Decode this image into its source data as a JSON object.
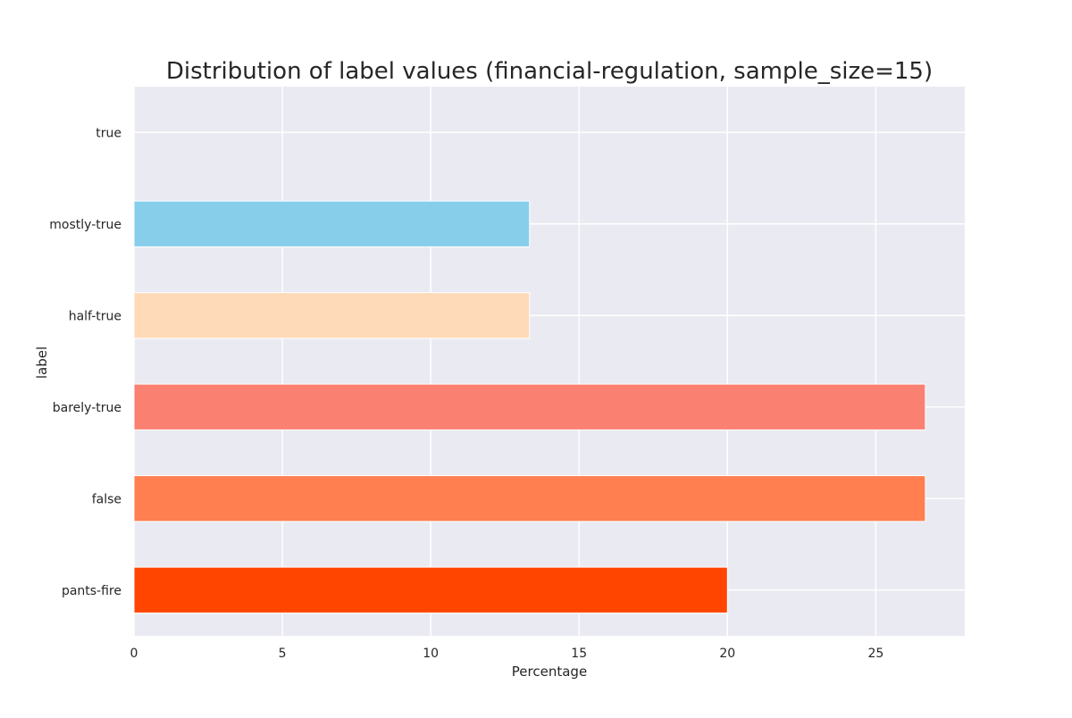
{
  "chart_data": {
    "type": "bar",
    "orientation": "horizontal",
    "title": "Distribution of label values (financial-regulation, sample_size=15)",
    "xlabel": "Percentage",
    "ylabel": "label",
    "categories": [
      "true",
      "mostly-true",
      "half-true",
      "barely-true",
      "false",
      "pants-fire"
    ],
    "values": [
      0,
      13.33,
      13.33,
      26.67,
      26.67,
      20.0
    ],
    "colors": [
      "#ffffff",
      "#87ceeb",
      "#ffdab9",
      "#fa8072",
      "#ff7f50",
      "#ff4500"
    ],
    "xlim": [
      0,
      28
    ],
    "xticks": [
      0,
      5,
      10,
      15,
      20,
      25
    ],
    "xtick_labels": [
      "0",
      "5",
      "10",
      "15",
      "20",
      "25"
    ],
    "grid": true,
    "background_color": "#eaeaf2",
    "grid_color": "#ffffff",
    "legend": "none"
  }
}
